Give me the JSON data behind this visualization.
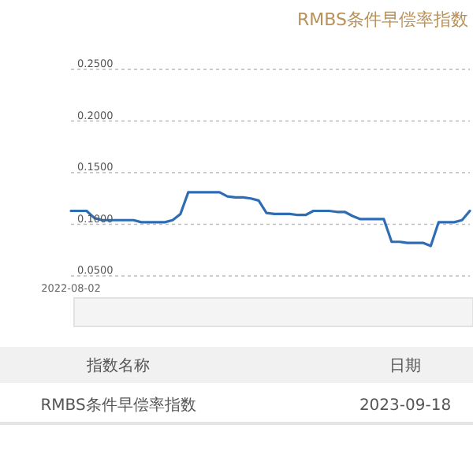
{
  "chart_data": {
    "type": "line",
    "title": "RMBS条件早偿率指数",
    "categories": [
      "2022-08-02",
      null,
      null,
      null,
      null,
      null,
      null,
      null,
      null,
      null,
      null,
      null,
      null,
      null,
      null,
      null,
      null,
      null,
      null,
      null,
      null,
      null,
      null,
      null,
      null,
      null,
      null,
      null,
      null,
      null,
      null,
      null,
      null,
      null,
      null,
      null,
      null,
      null,
      null,
      null,
      null,
      null,
      null,
      null,
      null,
      null,
      null,
      null,
      null,
      null,
      null,
      null
    ],
    "series": [
      {
        "color": "#2e6db4",
        "values": [
          0.113,
          0.113,
          0.113,
          0.106,
          0.104,
          0.104,
          0.104,
          0.104,
          0.104,
          0.102,
          0.102,
          0.102,
          0.102,
          0.104,
          0.11,
          0.131,
          0.131,
          0.131,
          0.131,
          0.131,
          0.127,
          0.126,
          0.126,
          0.125,
          0.123,
          0.111,
          0.11,
          0.11,
          0.11,
          0.109,
          0.109,
          0.113,
          0.113,
          0.113,
          0.112,
          0.112,
          0.108,
          0.105,
          0.105,
          0.105,
          0.105,
          0.083,
          0.083,
          0.082,
          0.082,
          0.082,
          0.079,
          0.102,
          0.102,
          0.102,
          0.104,
          0.113
        ]
      }
    ],
    "ylim": [
      0.05,
      0.25
    ],
    "yticks": [
      {
        "value": 0.05,
        "label": "0.0500"
      },
      {
        "value": 0.1,
        "label": "0.1000"
      },
      {
        "value": 0.15,
        "label": "0.1500"
      },
      {
        "value": 0.2,
        "label": "0.2000"
      },
      {
        "value": 0.25,
        "label": "0.2500"
      }
    ],
    "grid": "y",
    "annotations": [
      "指数名称",
      "日期",
      "RMBS条件早偿率指数",
      "2023-09-18"
    ]
  }
}
